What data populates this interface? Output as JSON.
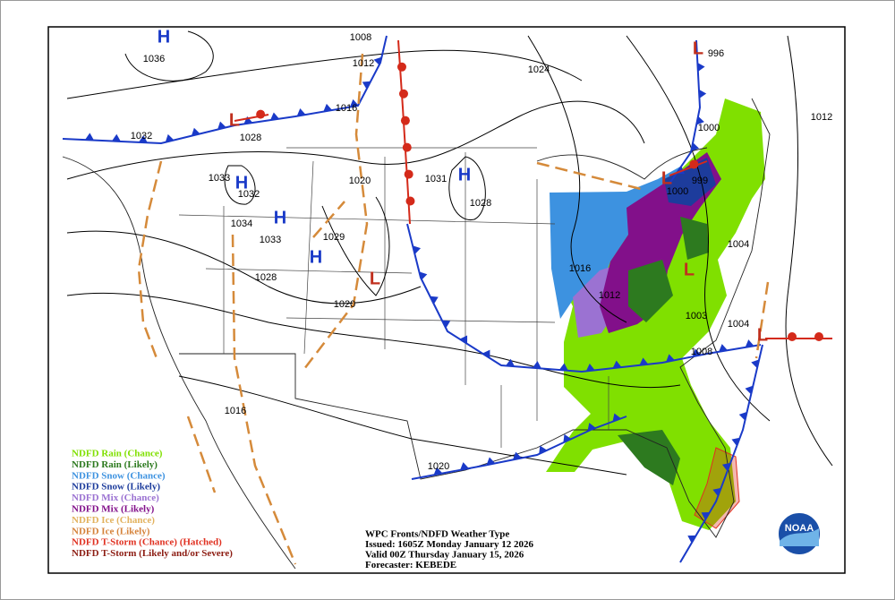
{
  "legend": [
    {
      "label": "NDFD Rain (Chance)",
      "color": "#80e000"
    },
    {
      "label": "NDFD Rain (Likely)",
      "color": "#2d7a1f"
    },
    {
      "label": "NDFD Snow (Chance)",
      "color": "#3d92e0"
    },
    {
      "label": "NDFD Snow (Likely)",
      "color": "#1d3c9c"
    },
    {
      "label": "NDFD Mix (Chance)",
      "color": "#9b72d2"
    },
    {
      "label": "NDFD Mix (Likely)",
      "color": "#82108a"
    },
    {
      "label": "NDFD Ice (Chance)",
      "color": "#e2b25e"
    },
    {
      "label": "NDFD Ice (Likely)",
      "color": "#d5823a"
    },
    {
      "label": "NDFD T-Storm (Chance) (Hatched)",
      "color": "#e03020"
    },
    {
      "label": "NDFD T-Storm (Likely and/or Severe)",
      "color": "#8c1c12"
    }
  ],
  "info": [
    "WPC Fronts/NDFD Weather Type",
    "Issued: 1605Z Monday January 12 2026",
    "Valid 00Z Thursday January 15, 2026",
    "Forecaster: KEBEDE"
  ],
  "isobar_labels": [
    "1036",
    "1032",
    "1028",
    "1033",
    "1032",
    "1034",
    "1033",
    "1028",
    "1029",
    "1020",
    "1016",
    "1020",
    "1031",
    "1028",
    "1008",
    "1012",
    "1024",
    "996",
    "1000",
    "1012",
    "999",
    "1000",
    "1004",
    "1016",
    "1012",
    "1003",
    "1004",
    "1008",
    "1016",
    "1020"
  ],
  "centers": [
    "H",
    "H",
    "H",
    "H",
    "H",
    "L",
    "L",
    "L",
    "L",
    "L",
    "L"
  ],
  "logo_text": "NOAA"
}
